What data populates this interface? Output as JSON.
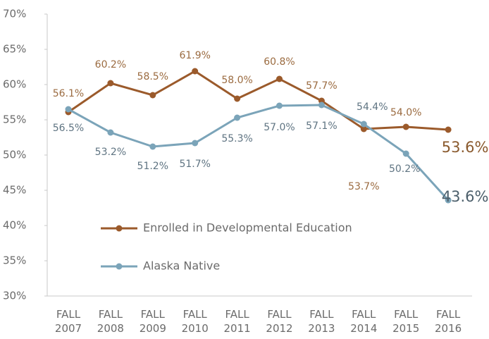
{
  "chart_data": {
    "type": "line",
    "categories": [
      "FALL 2007",
      "FALL 2008",
      "FALL 2009",
      "FALL 2010",
      "FALL 2011",
      "FALL 2012",
      "FALL 2013",
      "FALL 2014",
      "FALL 2015",
      "FALL 2016"
    ],
    "series": [
      {
        "name": "Enrolled in Developmental Education",
        "color": "#9b5a2b",
        "values": [
          56.1,
          60.2,
          58.5,
          61.9,
          58.0,
          60.8,
          57.7,
          53.7,
          54.0,
          53.6
        ],
        "value_labels": [
          "56.1%",
          "60.2%",
          "58.5%",
          "61.9%",
          "58.0%",
          "60.8%",
          "57.7%",
          "53.7%",
          "54.0%",
          "53.6%"
        ]
      },
      {
        "name": "Alaska Native",
        "color": "#7ba4b9",
        "values": [
          56.5,
          53.2,
          51.2,
          51.7,
          55.3,
          57.0,
          57.1,
          54.4,
          50.2,
          43.6
        ],
        "value_labels": [
          "56.5%",
          "53.2%",
          "51.2%",
          "51.7%",
          "55.3%",
          "57.0%",
          "57.1%",
          "54.4%",
          "50.2%",
          "43.6%"
        ]
      }
    ],
    "ylim": [
      30,
      70
    ],
    "yticks": [
      {
        "value": 30,
        "label": "30%"
      },
      {
        "value": 35,
        "label": "35%"
      },
      {
        "value": 40,
        "label": "40%"
      },
      {
        "value": 45,
        "label": "45%"
      },
      {
        "value": 50,
        "label": "50%"
      },
      {
        "value": 55,
        "label": "55%"
      },
      {
        "value": 60,
        "label": "60%"
      },
      {
        "value": 65,
        "label": "65%"
      },
      {
        "value": 70,
        "label": "70%"
      }
    ],
    "grid": false
  }
}
